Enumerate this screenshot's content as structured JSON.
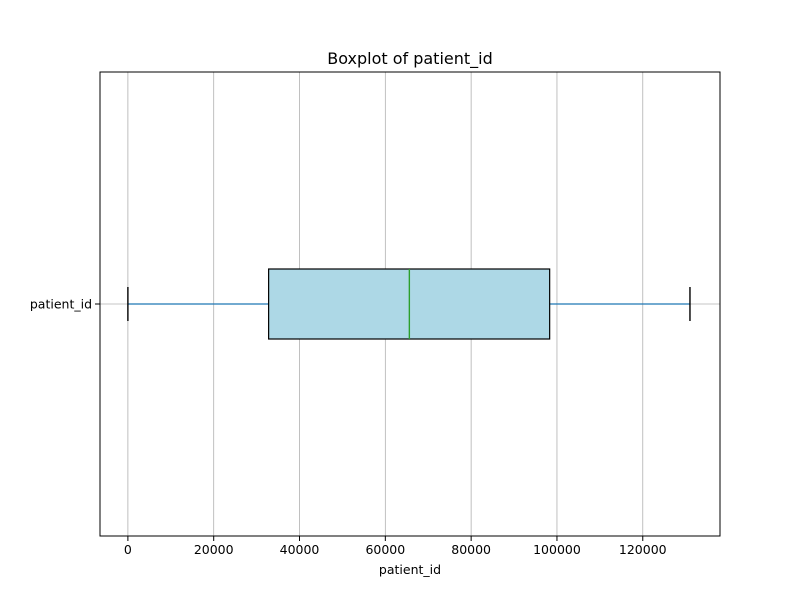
{
  "chart_data": {
    "type": "boxplot",
    "title": "Boxplot of patient_id",
    "xlabel": "patient_id",
    "ylabel": "",
    "orientation": "horizontal",
    "xlim": [
      -6500,
      138000
    ],
    "x_ticks": [
      0,
      20000,
      40000,
      60000,
      80000,
      100000,
      120000
    ],
    "x_tick_labels": [
      "0",
      "20000",
      "40000",
      "60000",
      "80000",
      "100000",
      "120000"
    ],
    "grid": true,
    "legend": "none",
    "series": [
      {
        "category": "patient_id",
        "whisker_low": 0,
        "q1": 32800,
        "median": 65600,
        "q3": 98300,
        "whisker_high": 131000
      }
    ],
    "colors": {
      "box_fill": "#add8e6",
      "box_edge": "#000000",
      "whisker": "#1f77b4",
      "cap": "#000000",
      "median": "#2ca02c",
      "grid": "#b0b0b0"
    }
  }
}
